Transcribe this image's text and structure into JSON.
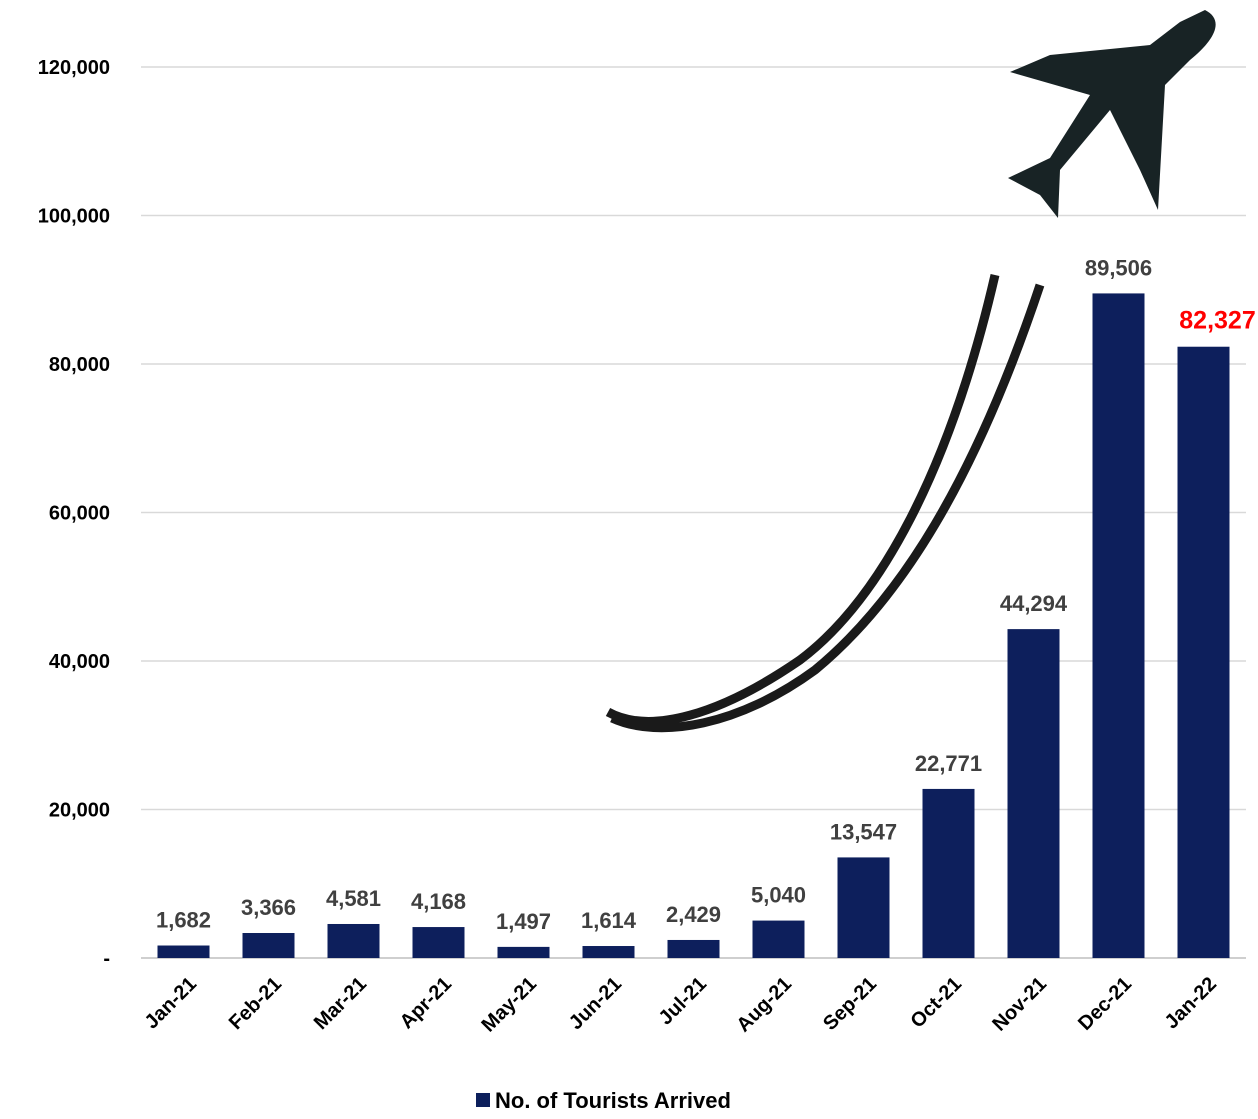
{
  "chart_data": {
    "type": "bar",
    "categories": [
      "Jan-21",
      "Feb-21",
      "Mar-21",
      "Apr-21",
      "May-21",
      "Jun-21",
      "Jul-21",
      "Aug-21",
      "Sep-21",
      "Oct-21",
      "Nov-21",
      "Dec-21",
      "Jan-22"
    ],
    "series": [
      {
        "name": "No. of Tourists Arrived",
        "color": "#0d1f5c",
        "values": [
          1682,
          3366,
          4581,
          4168,
          1497,
          1614,
          2429,
          5040,
          13547,
          22771,
          44294,
          89506,
          82327
        ],
        "value_labels": [
          "1,682",
          "3,366",
          "4,581",
          "4,168",
          "1,497",
          "1,614",
          "2,429",
          "5,040",
          "13,547",
          "22,771",
          "44,294",
          "89,506",
          "82,327"
        ],
        "value_label_colors": [
          "#404040",
          "#404040",
          "#404040",
          "#404040",
          "#404040",
          "#404040",
          "#404040",
          "#404040",
          "#404040",
          "#404040",
          "#404040",
          "#404040",
          "#ff0000"
        ]
      }
    ],
    "ylim": [
      0,
      120000
    ],
    "yticks": [
      {
        "value": 0,
        "label": "-"
      },
      {
        "value": 20000,
        "label": "20,000"
      },
      {
        "value": 40000,
        "label": "40,000"
      },
      {
        "value": 60000,
        "label": "60,000"
      },
      {
        "value": 80000,
        "label": "80,000"
      },
      {
        "value": 100000,
        "label": "100,000"
      },
      {
        "value": 120000,
        "label": "120,000"
      }
    ],
    "grid": true,
    "legend": "bottom"
  }
}
